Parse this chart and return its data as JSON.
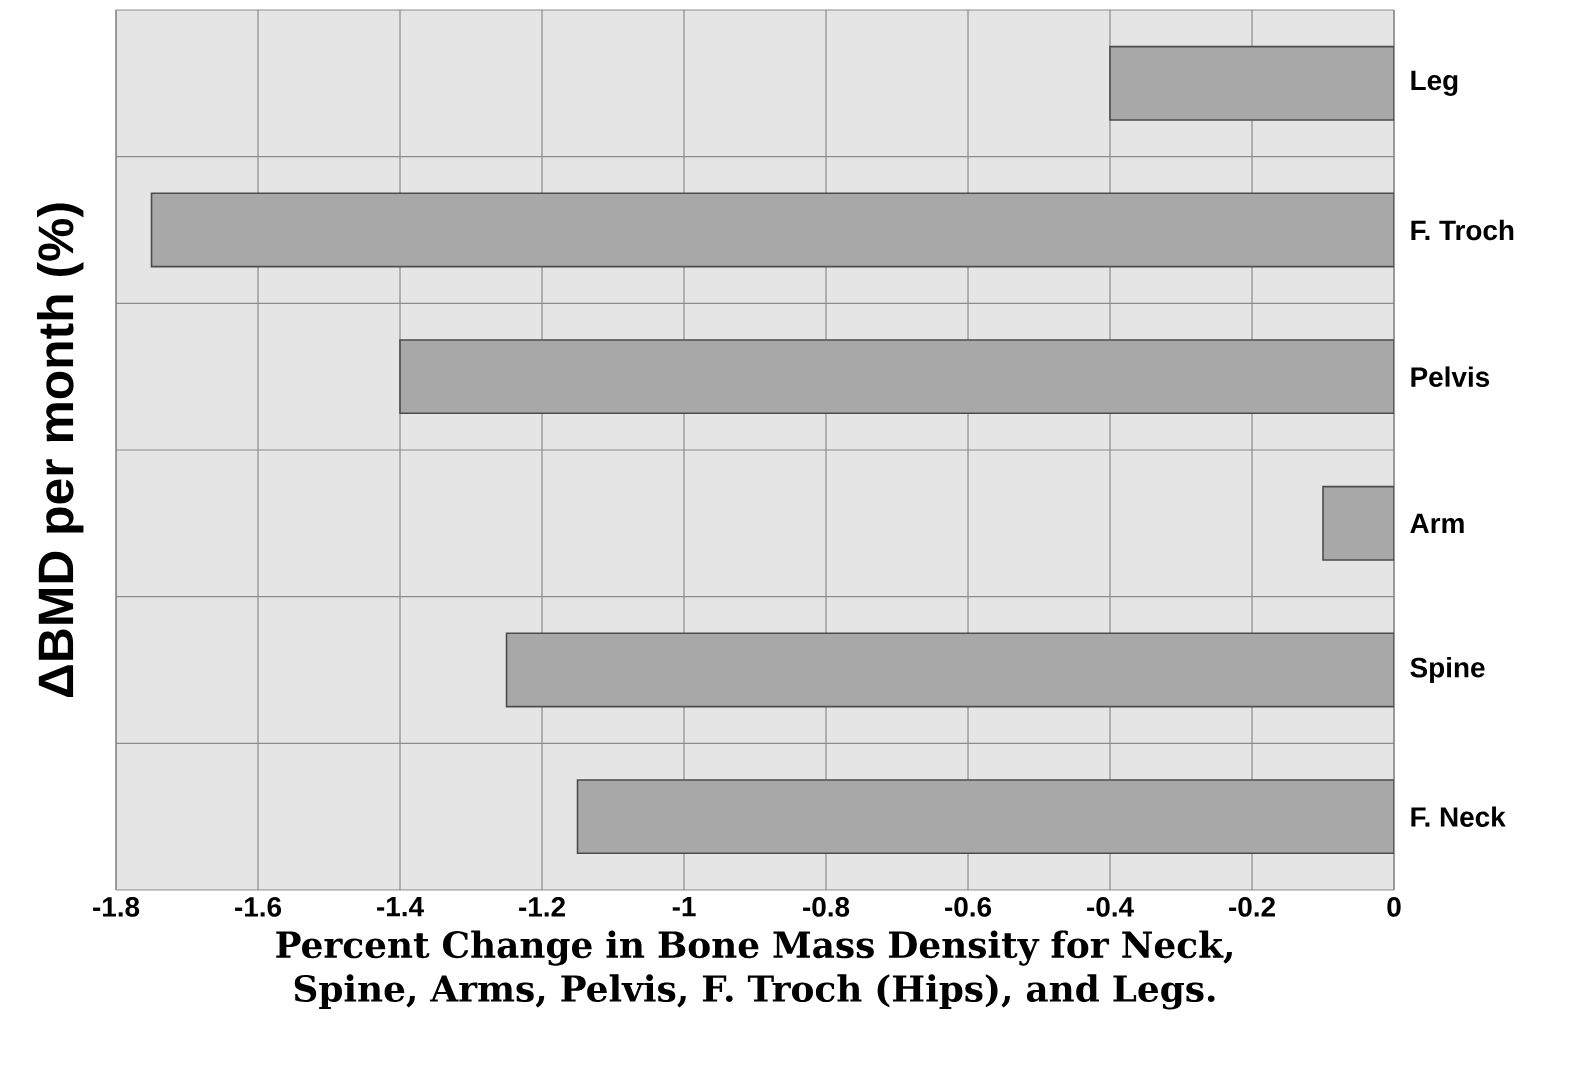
{
  "chart_data": {
    "type": "bar",
    "orientation": "horizontal",
    "xlabel": "Percent Change in Bone Mass Density for Neck, Spine, Arms, Pelvis, F. Troch (Hips), and Legs.",
    "ylabel": "ΔBMD per month (%)",
    "categories": [
      "Leg",
      "F. Troch",
      "Pelvis",
      "Arm",
      "Spine",
      "F. Neck"
    ],
    "values": [
      -0.4,
      -1.75,
      -1.4,
      -0.1,
      -1.25,
      -1.15
    ],
    "color": "#a8a8a8",
    "xlim": [
      -1.8,
      0
    ],
    "xticks": [
      -1.8,
      -1.6,
      -1.4,
      -1.2,
      -1,
      -0.8,
      -0.6,
      -0.4,
      -0.2,
      0
    ],
    "grid": true
  }
}
